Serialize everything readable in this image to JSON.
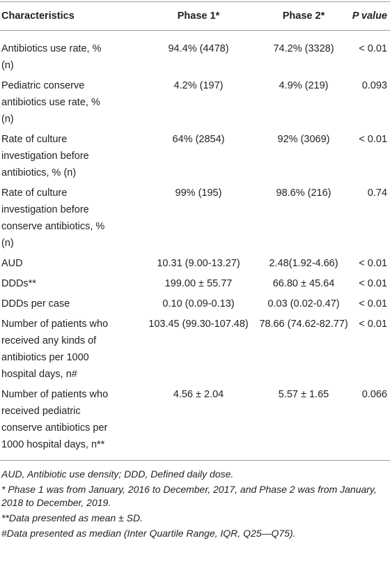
{
  "table": {
    "header": [
      "Characteristics",
      "Phase 1*",
      "Phase 2*",
      "P value"
    ],
    "rows": [
      [
        "Antibiotics use rate, % (n)",
        "94.4% (4478)",
        "74.2% (3328)",
        "< 0.01"
      ],
      [
        "Pediatric conserve antibiotics use rate, % (n)",
        "4.2% (197)",
        "4.9% (219)",
        "0.093"
      ],
      [
        "Rate of culture investigation before antibiotics, % (n)",
        "64% (2854)",
        "92% (3069)",
        "< 0.01"
      ],
      [
        "Rate of culture investigation before conserve antibiotics, % (n)",
        "99% (195)",
        "98.6% (216)",
        "0.74"
      ],
      [
        "AUD",
        "10.31 (9.00-13.27)",
        "2.48(1.92-4.66)",
        "< 0.01"
      ],
      [
        "DDDs**",
        "199.00 ± 55.77",
        "66.80 ± 45.64",
        "< 0.01"
      ],
      [
        "DDDs per case",
        "0.10 (0.09-0.13)",
        "0.03 (0.02-0.47)",
        "< 0.01"
      ],
      [
        "Number of patients who received any kinds of antibiotics per 1000 hospital days, n#",
        "103.45 (99.30-107.48)",
        "78.66 (74.62-82.77)",
        "< 0.01"
      ],
      [
        "Number of patients who received pediatric conserve antibiotics per 1000 hospital days, n**",
        "4.56 ± 2.04",
        "5.57 ± 1.65",
        "0.066"
      ]
    ]
  },
  "footnotes": [
    "AUD, Antibiotic use density; DDD, Defined daily dose.",
    "* Phase 1 was from January, 2016 to December, 2017, and Phase 2 was from January, 2018 to December, 2019.",
    "**Data presented as mean ± SD.",
    "#Data presented as median (Inter Quartile Range, IQR, Q25—Q75)."
  ]
}
